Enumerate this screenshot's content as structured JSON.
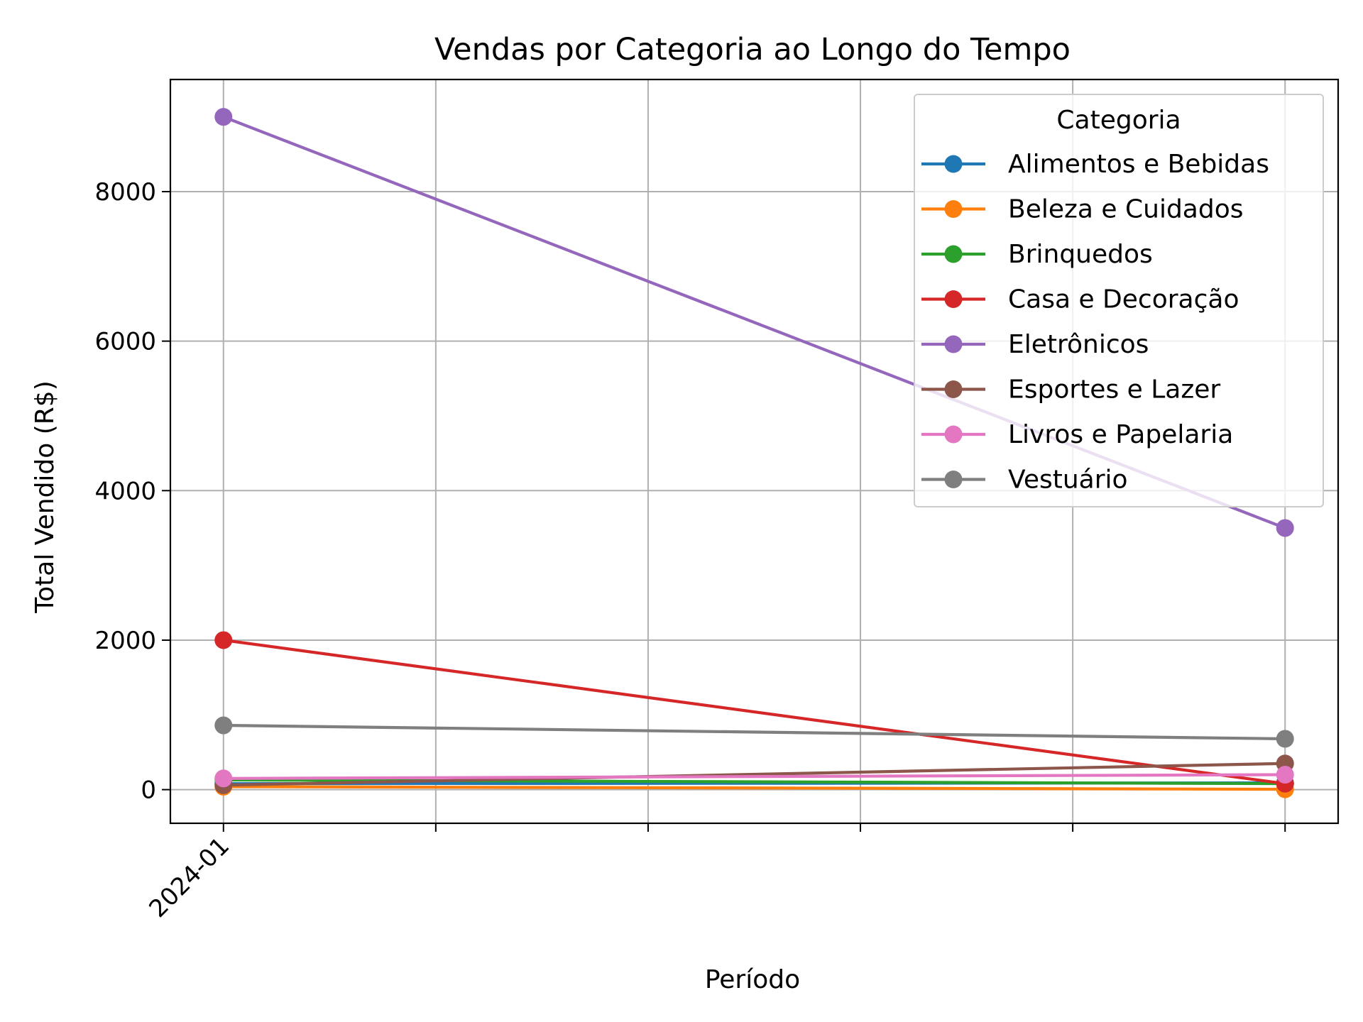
{
  "chart_data": {
    "type": "line",
    "title": "Vendas por Categoria ao Longo do Tempo",
    "xlabel": "Período",
    "ylabel": "Total Vendido (R$)",
    "x_ticks": [
      "2024-01",
      "",
      "",
      "",
      "",
      ""
    ],
    "x": [
      0,
      5
    ],
    "xlim": [
      -0.25,
      5.25
    ],
    "ylim": [
      -450,
      9500
    ],
    "y_ticks": [
      0,
      2000,
      4000,
      6000,
      8000
    ],
    "grid": true,
    "legend": {
      "title": "Categoria",
      "placement": "upper right"
    },
    "series": [
      {
        "name": "Alimentos e Bebidas",
        "color": "#1f77b4",
        "values": [
          80,
          90
        ]
      },
      {
        "name": "Beleza e Cuidados",
        "color": "#ff7f0e",
        "values": [
          40,
          5
        ]
      },
      {
        "name": "Brinquedos",
        "color": "#2ca02c",
        "values": [
          130,
          80
        ]
      },
      {
        "name": "Casa e Decoração",
        "color": "#d62728",
        "values": [
          2000,
          80
        ]
      },
      {
        "name": "Eletrônicos",
        "color": "#9467bd",
        "values": [
          9000,
          3500
        ]
      },
      {
        "name": "Esportes e Lazer",
        "color": "#8c564b",
        "values": [
          60,
          350
        ]
      },
      {
        "name": "Livros e Papelaria",
        "color": "#e377c2",
        "values": [
          150,
          200
        ]
      },
      {
        "name": "Vestuário",
        "color": "#7f7f7f",
        "values": [
          860,
          680
        ]
      }
    ]
  }
}
